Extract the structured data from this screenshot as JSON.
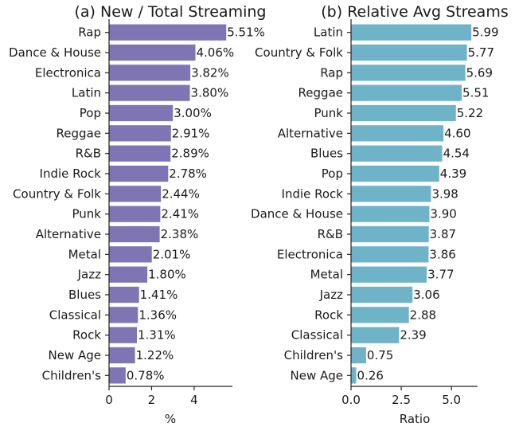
{
  "chart_data": [
    {
      "type": "bar",
      "orientation": "horizontal",
      "title": "(a) New / Total Streaming",
      "xlabel": "%",
      "ylabel": "",
      "categories": [
        "Rap",
        "Dance & House",
        "Electronica",
        "Latin",
        "Pop",
        "Reggae",
        "R&B",
        "Indie Rock",
        "Country & Folk",
        "Punk",
        "Alternative",
        "Metal",
        "Jazz",
        "Blues",
        "Classical",
        "Rock",
        "New Age",
        "Children's"
      ],
      "values": [
        5.51,
        4.06,
        3.82,
        3.8,
        3.0,
        2.91,
        2.89,
        2.78,
        2.44,
        2.41,
        2.38,
        2.01,
        1.8,
        1.41,
        1.36,
        1.31,
        1.22,
        0.78
      ],
      "value_labels": [
        "5.51%",
        "4.06%",
        "3.82%",
        "3.80%",
        "3.00%",
        "2.91%",
        "2.89%",
        "2.78%",
        "2.44%",
        "2.41%",
        "2.38%",
        "2.01%",
        "1.80%",
        "1.41%",
        "1.36%",
        "1.31%",
        "1.22%",
        "0.78%"
      ],
      "xlim": [
        0,
        5.8
      ],
      "xticks": [
        0,
        2,
        4
      ],
      "xtick_labels": [
        "0",
        "2",
        "4"
      ],
      "color": "#8075b3",
      "grid": false
    },
    {
      "type": "bar",
      "orientation": "horizontal",
      "title": "(b) Relative Avg Streams",
      "xlabel": "Ratio",
      "ylabel": "",
      "categories": [
        "Latin",
        "Country & Folk",
        "Rap",
        "Reggae",
        "Punk",
        "Alternative",
        "Blues",
        "Pop",
        "Indie Rock",
        "Dance & House",
        "R&B",
        "Electronica",
        "Metal",
        "Jazz",
        "Rock",
        "Classical",
        "Children's",
        "New Age"
      ],
      "values": [
        5.99,
        5.77,
        5.69,
        5.51,
        5.22,
        4.6,
        4.54,
        4.39,
        3.98,
        3.9,
        3.87,
        3.86,
        3.77,
        3.06,
        2.88,
        2.39,
        0.75,
        0.26
      ],
      "value_labels": [
        "5.99",
        "5.77",
        "5.69",
        "5.51",
        "5.22",
        "4.60",
        "4.54",
        "4.39",
        "3.98",
        "3.90",
        "3.87",
        "3.86",
        "3.77",
        "3.06",
        "2.88",
        "2.39",
        "0.75",
        "0.26"
      ],
      "xlim": [
        0,
        6.3
      ],
      "xticks": [
        0,
        2.5,
        5.0
      ],
      "xtick_labels": [
        "0.0",
        "2.5",
        "5.0"
      ],
      "color": "#6fb3c8",
      "grid": false
    }
  ]
}
